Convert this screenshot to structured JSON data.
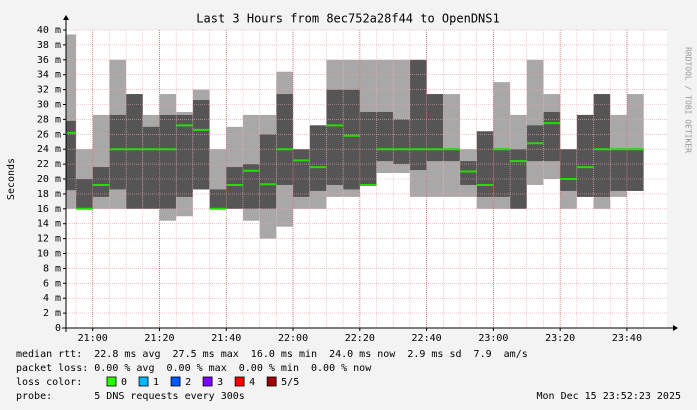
{
  "chart_data": {
    "type": "smoke",
    "title": "Last 3 Hours from 8ec752a28f44 to OpenDNS1",
    "ylabel": "Seconds",
    "watermark": "RRDTOOL / TOBI OETIKER",
    "xlim": [
      "20:52",
      "23:52"
    ],
    "xticks": [
      "21:00",
      "21:20",
      "21:40",
      "22:00",
      "22:20",
      "22:40",
      "23:00",
      "23:20",
      "23:40"
    ],
    "ylim": [
      0,
      40
    ],
    "yticks": [
      0,
      {
        "value": 2,
        "label": "2 m"
      },
      {
        "value": 4,
        "label": "4 m"
      },
      {
        "value": 6,
        "label": "6 m"
      },
      {
        "value": 8,
        "label": "8 m"
      },
      {
        "value": 10,
        "label": "10 m"
      },
      {
        "value": 12,
        "label": "12 m"
      },
      {
        "value": 14,
        "label": "14 m"
      },
      {
        "value": 16,
        "label": "16 m"
      },
      {
        "value": 18,
        "label": "18 m"
      },
      {
        "value": 20,
        "label": "20 m"
      },
      {
        "value": 22,
        "label": "22 m"
      },
      {
        "value": 24,
        "label": "24 m"
      },
      {
        "value": 26,
        "label": "26 m"
      },
      {
        "value": 28,
        "label": "28 m"
      },
      {
        "value": 30,
        "label": "30 m"
      },
      {
        "value": 32,
        "label": "32 m"
      },
      {
        "value": 34,
        "label": "34 m"
      },
      {
        "value": 36,
        "label": "36 m"
      },
      {
        "value": 38,
        "label": "38 m"
      },
      {
        "value": 40,
        "label": "40 m"
      }
    ],
    "grid": true,
    "median_color": "#22dd00",
    "light_color": "#a8a8a8",
    "dark_color": "#555555",
    "x": [
      "20:55",
      "21:00",
      "21:05",
      "21:10",
      "21:15",
      "21:20",
      "21:25",
      "21:30",
      "21:35",
      "21:40",
      "21:45",
      "21:50",
      "21:55",
      "22:00",
      "22:05",
      "22:10",
      "22:15",
      "22:20",
      "22:25",
      "22:30",
      "22:35",
      "22:40",
      "22:45",
      "22:50",
      "22:55",
      "23:00",
      "23:05",
      "23:10",
      "23:15",
      "23:20",
      "23:25",
      "23:30",
      "23:35",
      "23:40",
      "23:45"
    ],
    "median": [
      26.2,
      16,
      19.2,
      24,
      24,
      24,
      24,
      27.2,
      26.6,
      16,
      19.2,
      21.1,
      19.3,
      24,
      22.5,
      21.6,
      27.2,
      25.8,
      19.2,
      24,
      24,
      24,
      24,
      24,
      21,
      19.2,
      24,
      22.4,
      24.8,
      27.5,
      20,
      21.6,
      24,
      24,
      24
    ],
    "light_low": [
      16,
      16,
      16,
      16,
      16,
      16,
      14.4,
      15,
      18.6,
      16,
      16,
      14.4,
      12,
      13.6,
      16,
      16,
      17.6,
      17.6,
      19.2,
      20.8,
      20.8,
      17.6,
      17.6,
      17.6,
      17.6,
      16,
      16,
      16,
      19.2,
      20,
      16,
      17.6,
      16,
      17.6,
      18.4
    ],
    "dark_low": [
      18.5,
      16,
      17.6,
      18.6,
      16,
      16,
      16,
      17.6,
      18.6,
      16,
      16,
      16,
      16,
      19.2,
      17.6,
      18.4,
      19.2,
      18.6,
      19.2,
      22.4,
      22,
      21.2,
      22.4,
      22.4,
      19.2,
      17.6,
      17.6,
      16,
      22.4,
      22.4,
      18.4,
      17.6,
      17.6,
      18.4,
      18.4
    ],
    "dark_high": [
      27.8,
      20,
      21.6,
      28.6,
      31.4,
      27,
      28.6,
      28.6,
      30.6,
      18.6,
      21.6,
      22,
      26,
      31.4,
      24,
      27.2,
      32,
      32,
      29,
      29,
      28,
      36,
      31.4,
      24,
      22.4,
      26.4,
      24,
      24,
      27.2,
      29,
      24,
      28.6,
      31.4,
      24,
      24
    ],
    "light_high": [
      39.4,
      24,
      28.6,
      36,
      31.4,
      28.6,
      31.4,
      29,
      32,
      24,
      27,
      28.6,
      28.6,
      34.4,
      24,
      27.2,
      36,
      36,
      36,
      36,
      36,
      36,
      31.4,
      31.4,
      24,
      26.4,
      33,
      28.6,
      36,
      31.4,
      24,
      28.6,
      31.4,
      28.6,
      31.4
    ]
  },
  "legend": {
    "median_rtt": "median rtt:  22.8 ms avg  27.5 ms max  16.0 ms min  24.0 ms now  2.9 ms sd  7.9  am/s",
    "packet_loss": "packet loss: 0.00 % avg  0.00 % max  0.00 % min  0.00 % now",
    "loss_color_label": "loss color:",
    "loss_colors": [
      {
        "label": "0",
        "color": "#26ff00"
      },
      {
        "label": "1",
        "color": "#00b8ff"
      },
      {
        "label": "2",
        "color": "#0059ff"
      },
      {
        "label": "3",
        "color": "#7e00ff"
      },
      {
        "label": "4",
        "color": "#ff0000"
      },
      {
        "label": "5/5",
        "color": "#a10000"
      }
    ],
    "probe": "probe:       5 DNS requests every 300s",
    "timestamp": "Mon Dec 15 23:52:23 2025"
  }
}
